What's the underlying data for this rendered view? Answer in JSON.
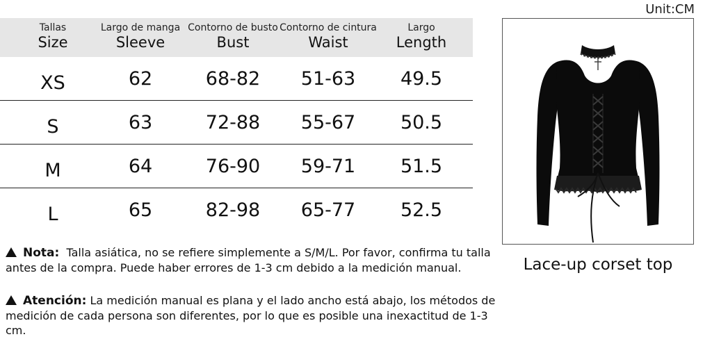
{
  "unit_label": "Unit:CM",
  "table": {
    "headers": [
      {
        "es": "Tallas",
        "en": "Size"
      },
      {
        "es": "Largo de manga",
        "en": "Sleeve"
      },
      {
        "es": "Contorno de busto",
        "en": "Bust"
      },
      {
        "es": "Contorno de cintura",
        "en": "Waist"
      },
      {
        "es": "Largo",
        "en": "Length"
      }
    ],
    "rows": [
      {
        "size": "XS",
        "sleeve": "62",
        "bust": "68-82",
        "waist": "51-63",
        "length": "49.5"
      },
      {
        "size": "S",
        "sleeve": "63",
        "bust": "72-88",
        "waist": "55-67",
        "length": "50.5"
      },
      {
        "size": "M",
        "sleeve": "64",
        "bust": "76-90",
        "waist": "59-71",
        "length": "51.5"
      },
      {
        "size": "L",
        "sleeve": "65",
        "bust": "82-98",
        "waist": "65-77",
        "length": "52.5"
      }
    ]
  },
  "notes": [
    {
      "label": "Nota:",
      "text": "Talla asiática, no se refiere simplemente a S/M/L. Por favor, confirma tu talla antes de la compra. Puede haber errores de 1-3 cm debido a la medición manual."
    },
    {
      "label": "Atención:",
      "text": "La medición manual es plana y el lado ancho está abajo, los métodos de medición de cada persona son diferentes, por lo que es posible una inexactitud de 1-3 cm."
    }
  ],
  "product": {
    "caption": "Lace-up corset top",
    "colors": {
      "garment": "#0b0b0b",
      "lace": "#1c1c1c",
      "frame": "#555555"
    }
  },
  "icons": {
    "note_marker": "warning-triangle-icon"
  }
}
